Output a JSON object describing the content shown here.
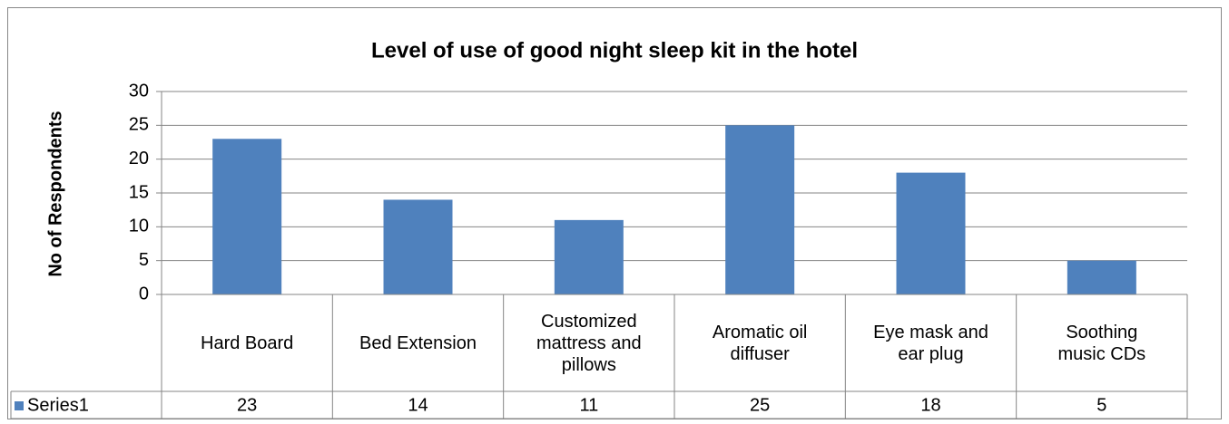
{
  "chart_data": {
    "type": "bar",
    "title": "Level of use of good night sleep kit in the hotel",
    "y_label": "No of Respondents",
    "categories": [
      "Hard Board",
      "Bed Extension",
      "Customized mattress and pillows",
      "Aromatic oil diffuser",
      "Eye mask and ear plug",
      "Soothing music CDs"
    ],
    "series": [
      {
        "name": "Series1",
        "color": "#4f81bd",
        "values": [
          23,
          14,
          11,
          25,
          18,
          5
        ]
      }
    ],
    "ylim": [
      0,
      30
    ],
    "yticks": [
      0,
      5,
      10,
      15,
      20,
      25,
      30
    ],
    "grid": true,
    "data_table": true
  }
}
